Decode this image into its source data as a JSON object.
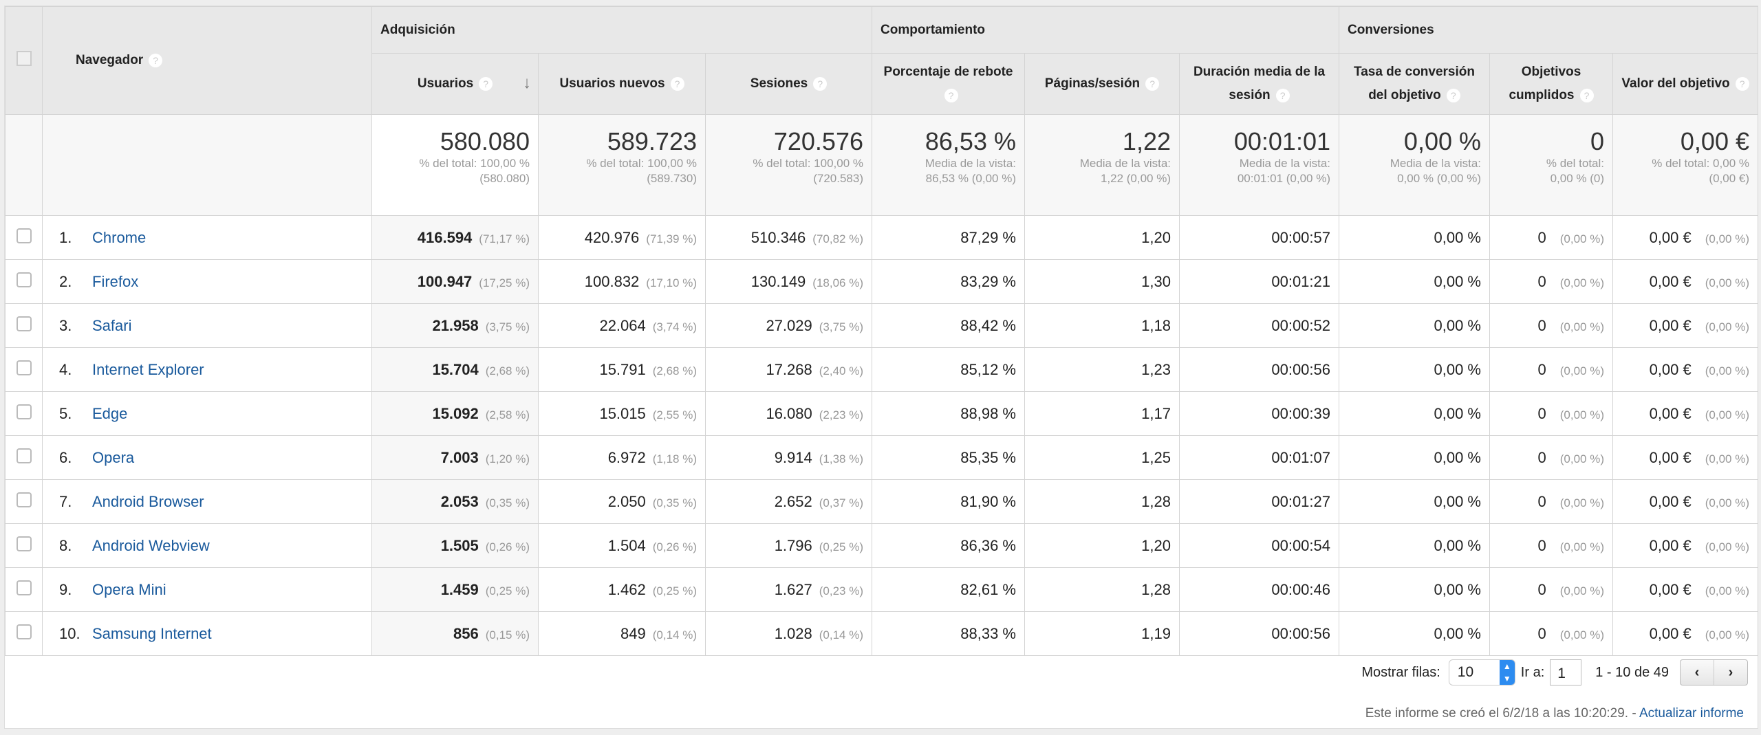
{
  "header": {
    "navegador": "Navegador",
    "groups": [
      "Adquisición",
      "Comportamiento",
      "Conversiones"
    ],
    "columns": [
      "Usuarios",
      "Usuarios nuevos",
      "Sesiones",
      "Porcentaje de rebote",
      "Páginas/sesión",
      "Duración media de la sesión",
      "Tasa de conversión del objetivo",
      "Objetivos cumplidos",
      "Valor del objetivo"
    ],
    "help_glyph": "?",
    "sort_glyph": "↓"
  },
  "summary": [
    {
      "value": "580.080",
      "l1": "% del total: 100,00 %",
      "l2": "(580.080)"
    },
    {
      "value": "589.723",
      "l1": "% del total: 100,00 %",
      "l2": "(589.730)"
    },
    {
      "value": "720.576",
      "l1": "% del total: 100,00 %",
      "l2": "(720.583)"
    },
    {
      "value": "86,53 %",
      "l1": "Media de la vista:",
      "l2": "86,53 % (0,00 %)"
    },
    {
      "value": "1,22",
      "l1": "Media de la vista:",
      "l2": "1,22 (0,00 %)"
    },
    {
      "value": "00:01:01",
      "l1": "Media de la vista:",
      "l2": "00:01:01 (0,00 %)"
    },
    {
      "value": "0,00 %",
      "l1": "Media de la vista:",
      "l2": "0,00 % (0,00 %)"
    },
    {
      "value": "0",
      "l1": "% del total:",
      "l2": "0,00 % (0)"
    },
    {
      "value": "0,00 €",
      "l1": "% del total: 0,00 %",
      "l2": "(0,00 €)"
    }
  ],
  "rows": [
    {
      "idx": "1.",
      "name": "Chrome",
      "users": "416.594",
      "users_pct": "(71,17 %)",
      "new": "420.976",
      "new_pct": "(71,39 %)",
      "sessions": "510.346",
      "sessions_pct": "(70,82 %)",
      "bounce": "87,29 %",
      "pages": "1,20",
      "duration": "00:00:57",
      "conv": "0,00 %",
      "goals": "0",
      "goals_pct": "(0,00 %)",
      "value": "0,00 €",
      "value_pct": "(0,00 %)"
    },
    {
      "idx": "2.",
      "name": "Firefox",
      "users": "100.947",
      "users_pct": "(17,25 %)",
      "new": "100.832",
      "new_pct": "(17,10 %)",
      "sessions": "130.149",
      "sessions_pct": "(18,06 %)",
      "bounce": "83,29 %",
      "pages": "1,30",
      "duration": "00:01:21",
      "conv": "0,00 %",
      "goals": "0",
      "goals_pct": "(0,00 %)",
      "value": "0,00 €",
      "value_pct": "(0,00 %)"
    },
    {
      "idx": "3.",
      "name": "Safari",
      "users": "21.958",
      "users_pct": "(3,75 %)",
      "new": "22.064",
      "new_pct": "(3,74 %)",
      "sessions": "27.029",
      "sessions_pct": "(3,75 %)",
      "bounce": "88,42 %",
      "pages": "1,18",
      "duration": "00:00:52",
      "conv": "0,00 %",
      "goals": "0",
      "goals_pct": "(0,00 %)",
      "value": "0,00 €",
      "value_pct": "(0,00 %)"
    },
    {
      "idx": "4.",
      "name": "Internet Explorer",
      "users": "15.704",
      "users_pct": "(2,68 %)",
      "new": "15.791",
      "new_pct": "(2,68 %)",
      "sessions": "17.268",
      "sessions_pct": "(2,40 %)",
      "bounce": "85,12 %",
      "pages": "1,23",
      "duration": "00:00:56",
      "conv": "0,00 %",
      "goals": "0",
      "goals_pct": "(0,00 %)",
      "value": "0,00 €",
      "value_pct": "(0,00 %)"
    },
    {
      "idx": "5.",
      "name": "Edge",
      "users": "15.092",
      "users_pct": "(2,58 %)",
      "new": "15.015",
      "new_pct": "(2,55 %)",
      "sessions": "16.080",
      "sessions_pct": "(2,23 %)",
      "bounce": "88,98 %",
      "pages": "1,17",
      "duration": "00:00:39",
      "conv": "0,00 %",
      "goals": "0",
      "goals_pct": "(0,00 %)",
      "value": "0,00 €",
      "value_pct": "(0,00 %)"
    },
    {
      "idx": "6.",
      "name": "Opera",
      "users": "7.003",
      "users_pct": "(1,20 %)",
      "new": "6.972",
      "new_pct": "(1,18 %)",
      "sessions": "9.914",
      "sessions_pct": "(1,38 %)",
      "bounce": "85,35 %",
      "pages": "1,25",
      "duration": "00:01:07",
      "conv": "0,00 %",
      "goals": "0",
      "goals_pct": "(0,00 %)",
      "value": "0,00 €",
      "value_pct": "(0,00 %)"
    },
    {
      "idx": "7.",
      "name": "Android Browser",
      "users": "2.053",
      "users_pct": "(0,35 %)",
      "new": "2.050",
      "new_pct": "(0,35 %)",
      "sessions": "2.652",
      "sessions_pct": "(0,37 %)",
      "bounce": "81,90 %",
      "pages": "1,28",
      "duration": "00:01:27",
      "conv": "0,00 %",
      "goals": "0",
      "goals_pct": "(0,00 %)",
      "value": "0,00 €",
      "value_pct": "(0,00 %)"
    },
    {
      "idx": "8.",
      "name": "Android Webview",
      "users": "1.505",
      "users_pct": "(0,26 %)",
      "new": "1.504",
      "new_pct": "(0,26 %)",
      "sessions": "1.796",
      "sessions_pct": "(0,25 %)",
      "bounce": "86,36 %",
      "pages": "1,20",
      "duration": "00:00:54",
      "conv": "0,00 %",
      "goals": "0",
      "goals_pct": "(0,00 %)",
      "value": "0,00 €",
      "value_pct": "(0,00 %)"
    },
    {
      "idx": "9.",
      "name": "Opera Mini",
      "users": "1.459",
      "users_pct": "(0,25 %)",
      "new": "1.462",
      "new_pct": "(0,25 %)",
      "sessions": "1.627",
      "sessions_pct": "(0,23 %)",
      "bounce": "82,61 %",
      "pages": "1,28",
      "duration": "00:00:46",
      "conv": "0,00 %",
      "goals": "0",
      "goals_pct": "(0,00 %)",
      "value": "0,00 €",
      "value_pct": "(0,00 %)"
    },
    {
      "idx": "10.",
      "name": "Samsung Internet",
      "users": "856",
      "users_pct": "(0,15 %)",
      "new": "849",
      "new_pct": "(0,14 %)",
      "sessions": "1.028",
      "sessions_pct": "(0,14 %)",
      "bounce": "88,33 %",
      "pages": "1,19",
      "duration": "00:00:56",
      "conv": "0,00 %",
      "goals": "0",
      "goals_pct": "(0,00 %)",
      "value": "0,00 €",
      "value_pct": "(0,00 %)"
    }
  ],
  "footer": {
    "show_rows_label": "Mostrar filas:",
    "show_rows_value": "10",
    "goto_label": "Ir a:",
    "goto_value": "1",
    "range": "1 - 10 de 49",
    "prev": "‹",
    "next": "›",
    "report_text": "Este informe se creó el 6/2/18 a las 10:20:29. - ",
    "refresh_link": "Actualizar informe"
  },
  "colors": {
    "link": "#1a5a9c",
    "select_accent": "#2d8cf0"
  }
}
